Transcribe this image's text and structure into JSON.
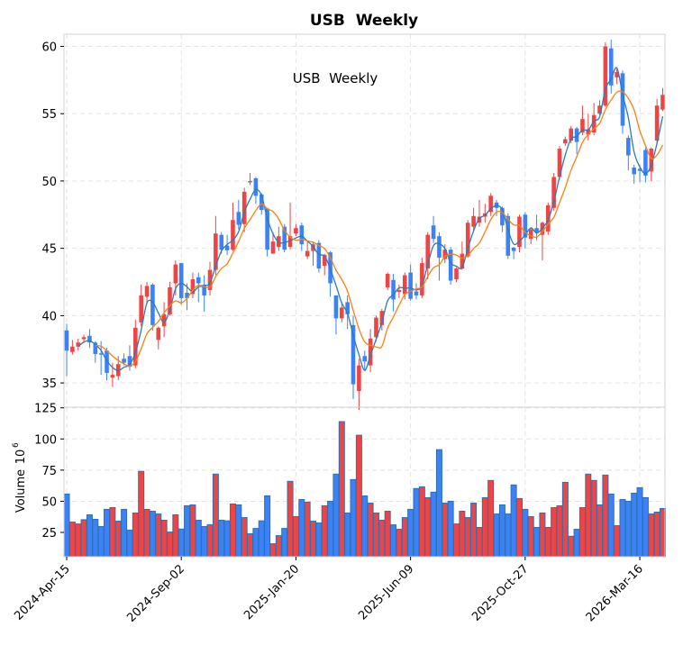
{
  "chart_data": {
    "type": "candlestick",
    "title": "USB  Weekly",
    "annotation": "USB  Weekly",
    "frequency": "weekly",
    "price_ylim": [
      33.2,
      60.9
    ],
    "price_yticks": [
      35,
      40,
      45,
      50,
      55,
      60
    ],
    "volume_ylabel": "Volume",
    "volume_unit_exponent": "6",
    "volume_ylim": [
      5.5,
      125.5
    ],
    "volume_yticks": [
      25,
      50,
      75,
      100,
      125
    ],
    "grid": true,
    "xticks": [
      {
        "index": 0,
        "label": "2024-Apr-15"
      },
      {
        "index": 20,
        "label": "2024-Sep-02"
      },
      {
        "index": 40,
        "label": "2025-Jan-20"
      },
      {
        "index": 60,
        "label": "2025-Jun-09"
      },
      {
        "index": 80,
        "label": "2025-Oct-27"
      },
      {
        "index": 100,
        "label": "2026-Mar-16"
      }
    ],
    "moving_averages": [
      {
        "window": 3,
        "color": "#2b7bba"
      },
      {
        "window": 6,
        "color": "#ff7f0e"
      }
    ],
    "colors": {
      "up": "#ef4444",
      "down": "#3b82f6",
      "volume_edge": "#2f6fb5"
    },
    "open": [
      38.9,
      37.3,
      37.7,
      38.25,
      38.5,
      38.0,
      37.2,
      37.4,
      35.4,
      35.5,
      36.8,
      37.0,
      36.3,
      39.5,
      41.4,
      42.3,
      38.2,
      39.2,
      40.1,
      42.4,
      43.9,
      41.7,
      41.6,
      42.85,
      42.3,
      41.9,
      43.4,
      46.0,
      45.2,
      44.9,
      47.7,
      46.8,
      49.9,
      50.2,
      49.0,
      47.96,
      44.6,
      45.1,
      46.6,
      45.1,
      46.1,
      46.7,
      44.4,
      44.8,
      45.4,
      43.7,
      44.7,
      41.5,
      39.8,
      41.0,
      39.3,
      34.4,
      37.0,
      36.3,
      38.4,
      39.3,
      42.1,
      42.65,
      41.75,
      41.6,
      43.2,
      41.8,
      41.5,
      43.5,
      46.7,
      45.9,
      44.2,
      44.9,
      42.7,
      43.5,
      44.4,
      46.6,
      46.9,
      47.35,
      47.7,
      48.4,
      48.0,
      47.4,
      45.05,
      45.1,
      47.5,
      45.7,
      46.5,
      46.0,
      46.25,
      48.0,
      50.3,
      52.8,
      53.0,
      53.9,
      53.6,
      53.45,
      53.6,
      55.0,
      55.6,
      59.85,
      57.7,
      58.0,
      53.2,
      51.0,
      50.9,
      52.3,
      50.7,
      53.0,
      55.3
    ],
    "close": [
      37.4,
      37.7,
      38.0,
      38.4,
      38.0,
      37.15,
      37.1,
      35.75,
      35.6,
      36.4,
      36.5,
      36.2,
      39.1,
      41.5,
      42.2,
      39.3,
      39.1,
      40.1,
      42.1,
      43.8,
      41.3,
      41.3,
      42.7,
      42.4,
      41.5,
      43.4,
      46.1,
      44.9,
      44.85,
      47.1,
      46.75,
      49.2,
      50.0,
      48.9,
      47.85,
      44.9,
      45.5,
      45.9,
      44.9,
      45.9,
      46.5,
      45.3,
      44.8,
      45.3,
      43.5,
      44.5,
      42.4,
      39.8,
      40.6,
      40.1,
      34.9,
      36.3,
      36.6,
      38.3,
      39.85,
      40.35,
      43.1,
      41.2,
      41.9,
      43.0,
      41.25,
      41.5,
      43.9,
      46.0,
      45.7,
      44.3,
      44.9,
      42.6,
      43.5,
      44.6,
      46.9,
      47.4,
      47.35,
      47.6,
      48.9,
      48.0,
      46.7,
      44.45,
      44.8,
      47.35,
      45.8,
      46.4,
      46.2,
      46.9,
      48.2,
      50.3,
      52.4,
      53.1,
      53.9,
      52.9,
      54.6,
      53.85,
      54.9,
      55.6,
      60.0,
      57.1,
      58.1,
      54.1,
      51.9,
      50.5,
      50.75,
      50.4,
      52.4,
      55.6,
      56.4
    ],
    "high": [
      39.4,
      38.2,
      38.3,
      38.6,
      39.0,
      38.1,
      38.1,
      37.6,
      36.5,
      37.0,
      37.2,
      37.8,
      39.7,
      42.3,
      42.5,
      42.4,
      39.2,
      41.0,
      42.5,
      44.1,
      43.9,
      42.4,
      43.2,
      43.2,
      43.0,
      44.0,
      47.4,
      46.2,
      46.0,
      48.4,
      48.6,
      49.5,
      50.6,
      50.3,
      49.1,
      48.0,
      46.2,
      46.6,
      46.8,
      48.4,
      46.8,
      46.9,
      45.5,
      45.5,
      45.6,
      44.6,
      44.8,
      41.5,
      41.0,
      41.5,
      40.0,
      36.8,
      37.4,
      39.0,
      40.0,
      40.5,
      43.2,
      43.1,
      42.3,
      43.2,
      43.8,
      42.4,
      44.3,
      46.2,
      47.4,
      46.2,
      45.3,
      45.1,
      43.6,
      45.5,
      47.1,
      48.0,
      48.6,
      48.3,
      49.1,
      48.6,
      48.1,
      47.6,
      45.1,
      47.5,
      47.7,
      46.5,
      47.5,
      47.0,
      48.4,
      50.6,
      52.6,
      53.3,
      54.1,
      54.0,
      55.6,
      55.0,
      55.8,
      56.0,
      60.3,
      60.5,
      58.4,
      58.2,
      53.4,
      51.2,
      51.2,
      52.5,
      52.5,
      56.1,
      56.9
    ],
    "low": [
      35.5,
      37.1,
      37.4,
      38.0,
      37.6,
      36.5,
      35.6,
      35.2,
      34.7,
      35.2,
      36.3,
      35.9,
      36.1,
      39.2,
      40.9,
      38.9,
      37.5,
      38.4,
      40.0,
      41.5,
      40.8,
      40.4,
      41.3,
      41.0,
      40.3,
      41.5,
      43.0,
      44.6,
      44.5,
      44.8,
      46.4,
      46.2,
      49.7,
      48.3,
      47.5,
      44.4,
      44.6,
      44.8,
      44.7,
      44.9,
      45.9,
      44.8,
      44.2,
      43.7,
      43.2,
      43.0,
      41.4,
      38.6,
      39.5,
      39.0,
      33.8,
      33.0,
      35.9,
      35.8,
      38.1,
      38.9,
      41.9,
      40.3,
      41.3,
      41.2,
      41.1,
      41.2,
      41.3,
      42.7,
      45.4,
      42.6,
      43.9,
      42.3,
      42.5,
      43.4,
      44.3,
      46.3,
      46.6,
      46.9,
      47.4,
      47.4,
      46.2,
      44.2,
      44.2,
      44.7,
      45.0,
      45.3,
      45.6,
      44.1,
      46.0,
      47.8,
      50.1,
      52.6,
      52.8,
      52.0,
      53.4,
      53.0,
      53.4,
      54.9,
      55.5,
      56.5,
      57.2,
      53.5,
      50.8,
      49.8,
      49.9,
      49.9,
      50.0,
      52.8,
      55.2
    ],
    "volume": [
      55.8,
      33.3,
      31.8,
      35.2,
      39.1,
      35.5,
      29.7,
      43.5,
      44.9,
      34.0,
      43.5,
      26.8,
      40.6,
      74.0,
      43.5,
      42.0,
      39.8,
      34.8,
      25.3,
      39.1,
      27.7,
      46.4,
      47.1,
      34.8,
      29.7,
      31.1,
      71.8,
      34.8,
      34.3,
      47.8,
      47.1,
      36.9,
      23.9,
      28.2,
      34.3,
      54.3,
      15.9,
      22.4,
      28.2,
      66.0,
      37.7,
      51.4,
      49.3,
      34.0,
      32.6,
      46.4,
      50.0,
      71.8,
      113.9,
      40.6,
      67.4,
      103.0,
      54.3,
      48.5,
      40.6,
      34.8,
      42.0,
      31.1,
      27.5,
      36.9,
      43.5,
      60.2,
      61.6,
      52.9,
      57.3,
      91.4,
      48.5,
      50.0,
      31.8,
      42.0,
      36.9,
      48.5,
      29.0,
      52.9,
      66.7,
      39.8,
      47.1,
      39.8,
      63.1,
      52.2,
      43.5,
      37.7,
      29.0,
      40.6,
      29.0,
      44.9,
      46.4,
      65.2,
      21.9,
      27.5,
      44.9,
      71.8,
      66.7,
      47.1,
      71.0,
      55.8,
      30.4,
      51.4,
      50.0,
      56.5,
      60.9,
      52.9,
      39.8,
      41.3,
      44.2
    ]
  }
}
